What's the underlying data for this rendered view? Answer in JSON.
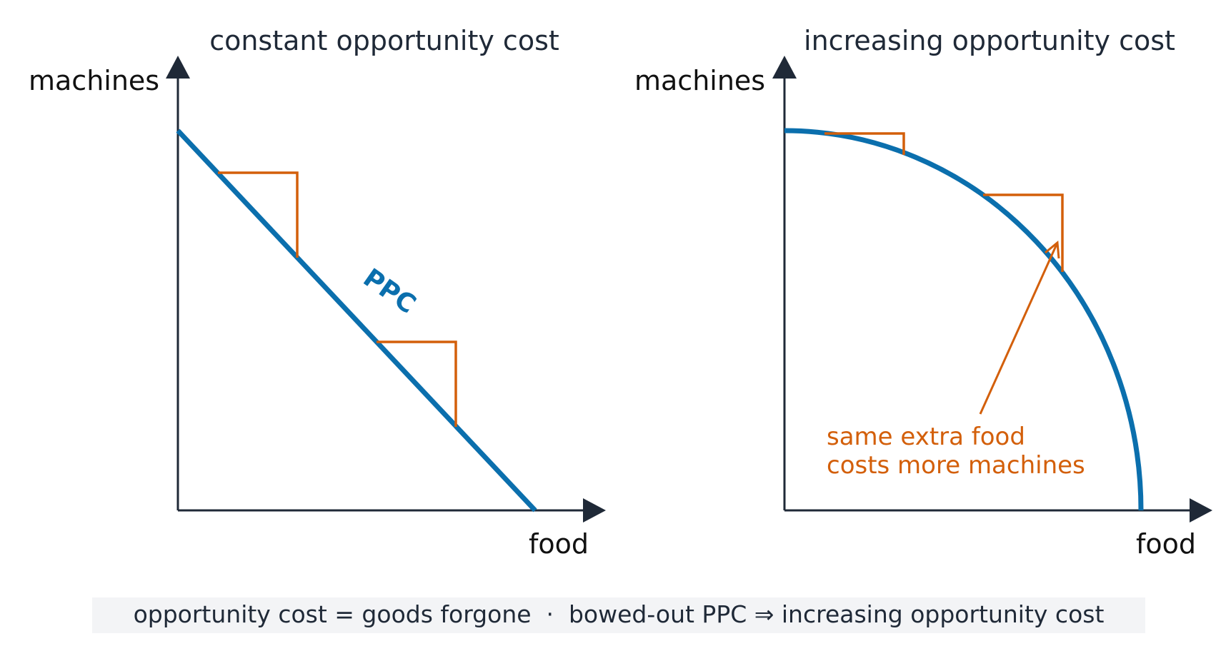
{
  "left_panel": {
    "title": "constant opportunity cost",
    "y_axis_label": "machines",
    "x_axis_label": "food",
    "curve_label": "PPC"
  },
  "right_panel": {
    "title": "increasing opportunity cost",
    "y_axis_label": "machines",
    "x_axis_label": "food",
    "annotation_line1": "same extra food",
    "annotation_line2": "costs more machines"
  },
  "footer": {
    "text": "opportunity cost = goods forgone  ·  bowed-out PPC ⇒ increasing opportunity cost"
  },
  "colors": {
    "curve": "#0b6fad",
    "step": "#d35f0a",
    "axis": "#1f2937",
    "footer_bg": "#f3f4f6"
  }
}
